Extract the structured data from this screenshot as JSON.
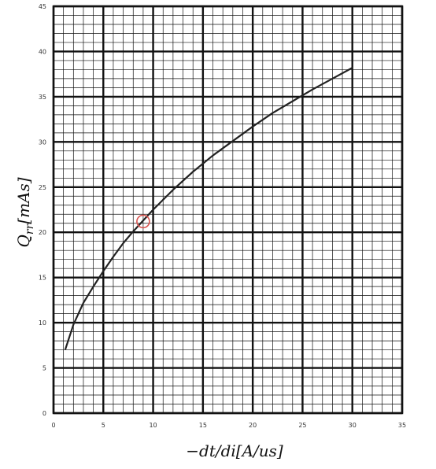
{
  "chart_data": {
    "type": "line",
    "title": "",
    "xlabel": "−dt/di[A/us]",
    "ylabel": "Q",
    "ylabel_sub": "rr",
    "ylabel_unit": "[mAs]",
    "xlim": [
      0,
      35
    ],
    "ylim": [
      0,
      45
    ],
    "x_ticks": [
      "0",
      "5",
      "10",
      "15",
      "20",
      "25",
      "30",
      "35"
    ],
    "y_ticks": [
      "0",
      "5",
      "10",
      "15",
      "20",
      "25",
      "30",
      "35",
      "40",
      "45"
    ],
    "grid": true,
    "minor_grid_step": 1,
    "legend": "none",
    "series": [
      {
        "color": "#222222",
        "x": [
          1.2,
          2,
          3,
          4,
          5,
          6,
          7,
          8,
          9,
          10,
          12,
          14,
          16,
          18,
          20,
          22,
          24,
          26,
          28,
          30
        ],
        "y": [
          7.1,
          9.8,
          12.2,
          14.0,
          15.7,
          17.3,
          18.8,
          20.1,
          21.3,
          22.5,
          24.7,
          26.7,
          28.5,
          30.1,
          31.7,
          33.2,
          34.5,
          35.8,
          37.0,
          38.2
        ]
      }
    ],
    "annotations": [
      {
        "type": "circle-marker",
        "x": 9.0,
        "y": 21.2,
        "color": "#d9534f"
      }
    ]
  }
}
